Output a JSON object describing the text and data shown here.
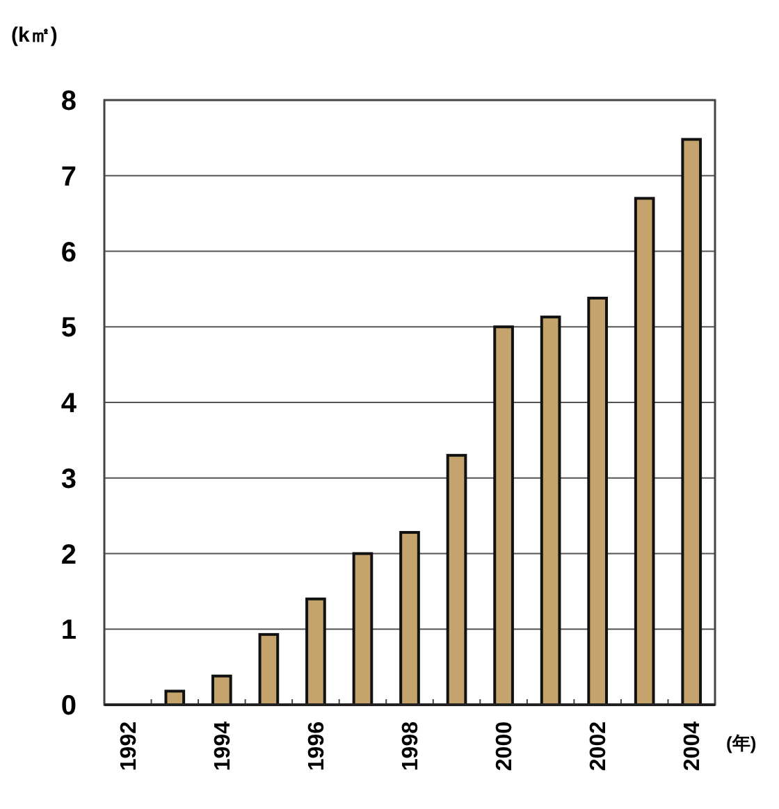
{
  "chart_data": {
    "type": "bar",
    "ylabel": "(k㎡)",
    "xlabel": "(年)",
    "categories": [
      "1992",
      null,
      "1994",
      null,
      "1996",
      null,
      "1998",
      null,
      "2000",
      null,
      "2002",
      null,
      "2004"
    ],
    "values": [
      0,
      0.18,
      0.38,
      0.93,
      1.4,
      2.0,
      2.28,
      3.3,
      5.0,
      5.13,
      5.38,
      6.7,
      7.48
    ],
    "color": "#c4a46c",
    "ylim": [
      0,
      8
    ],
    "yticks": [
      0,
      1,
      2,
      3,
      4,
      5,
      6,
      7,
      8
    ],
    "grid": "y"
  }
}
